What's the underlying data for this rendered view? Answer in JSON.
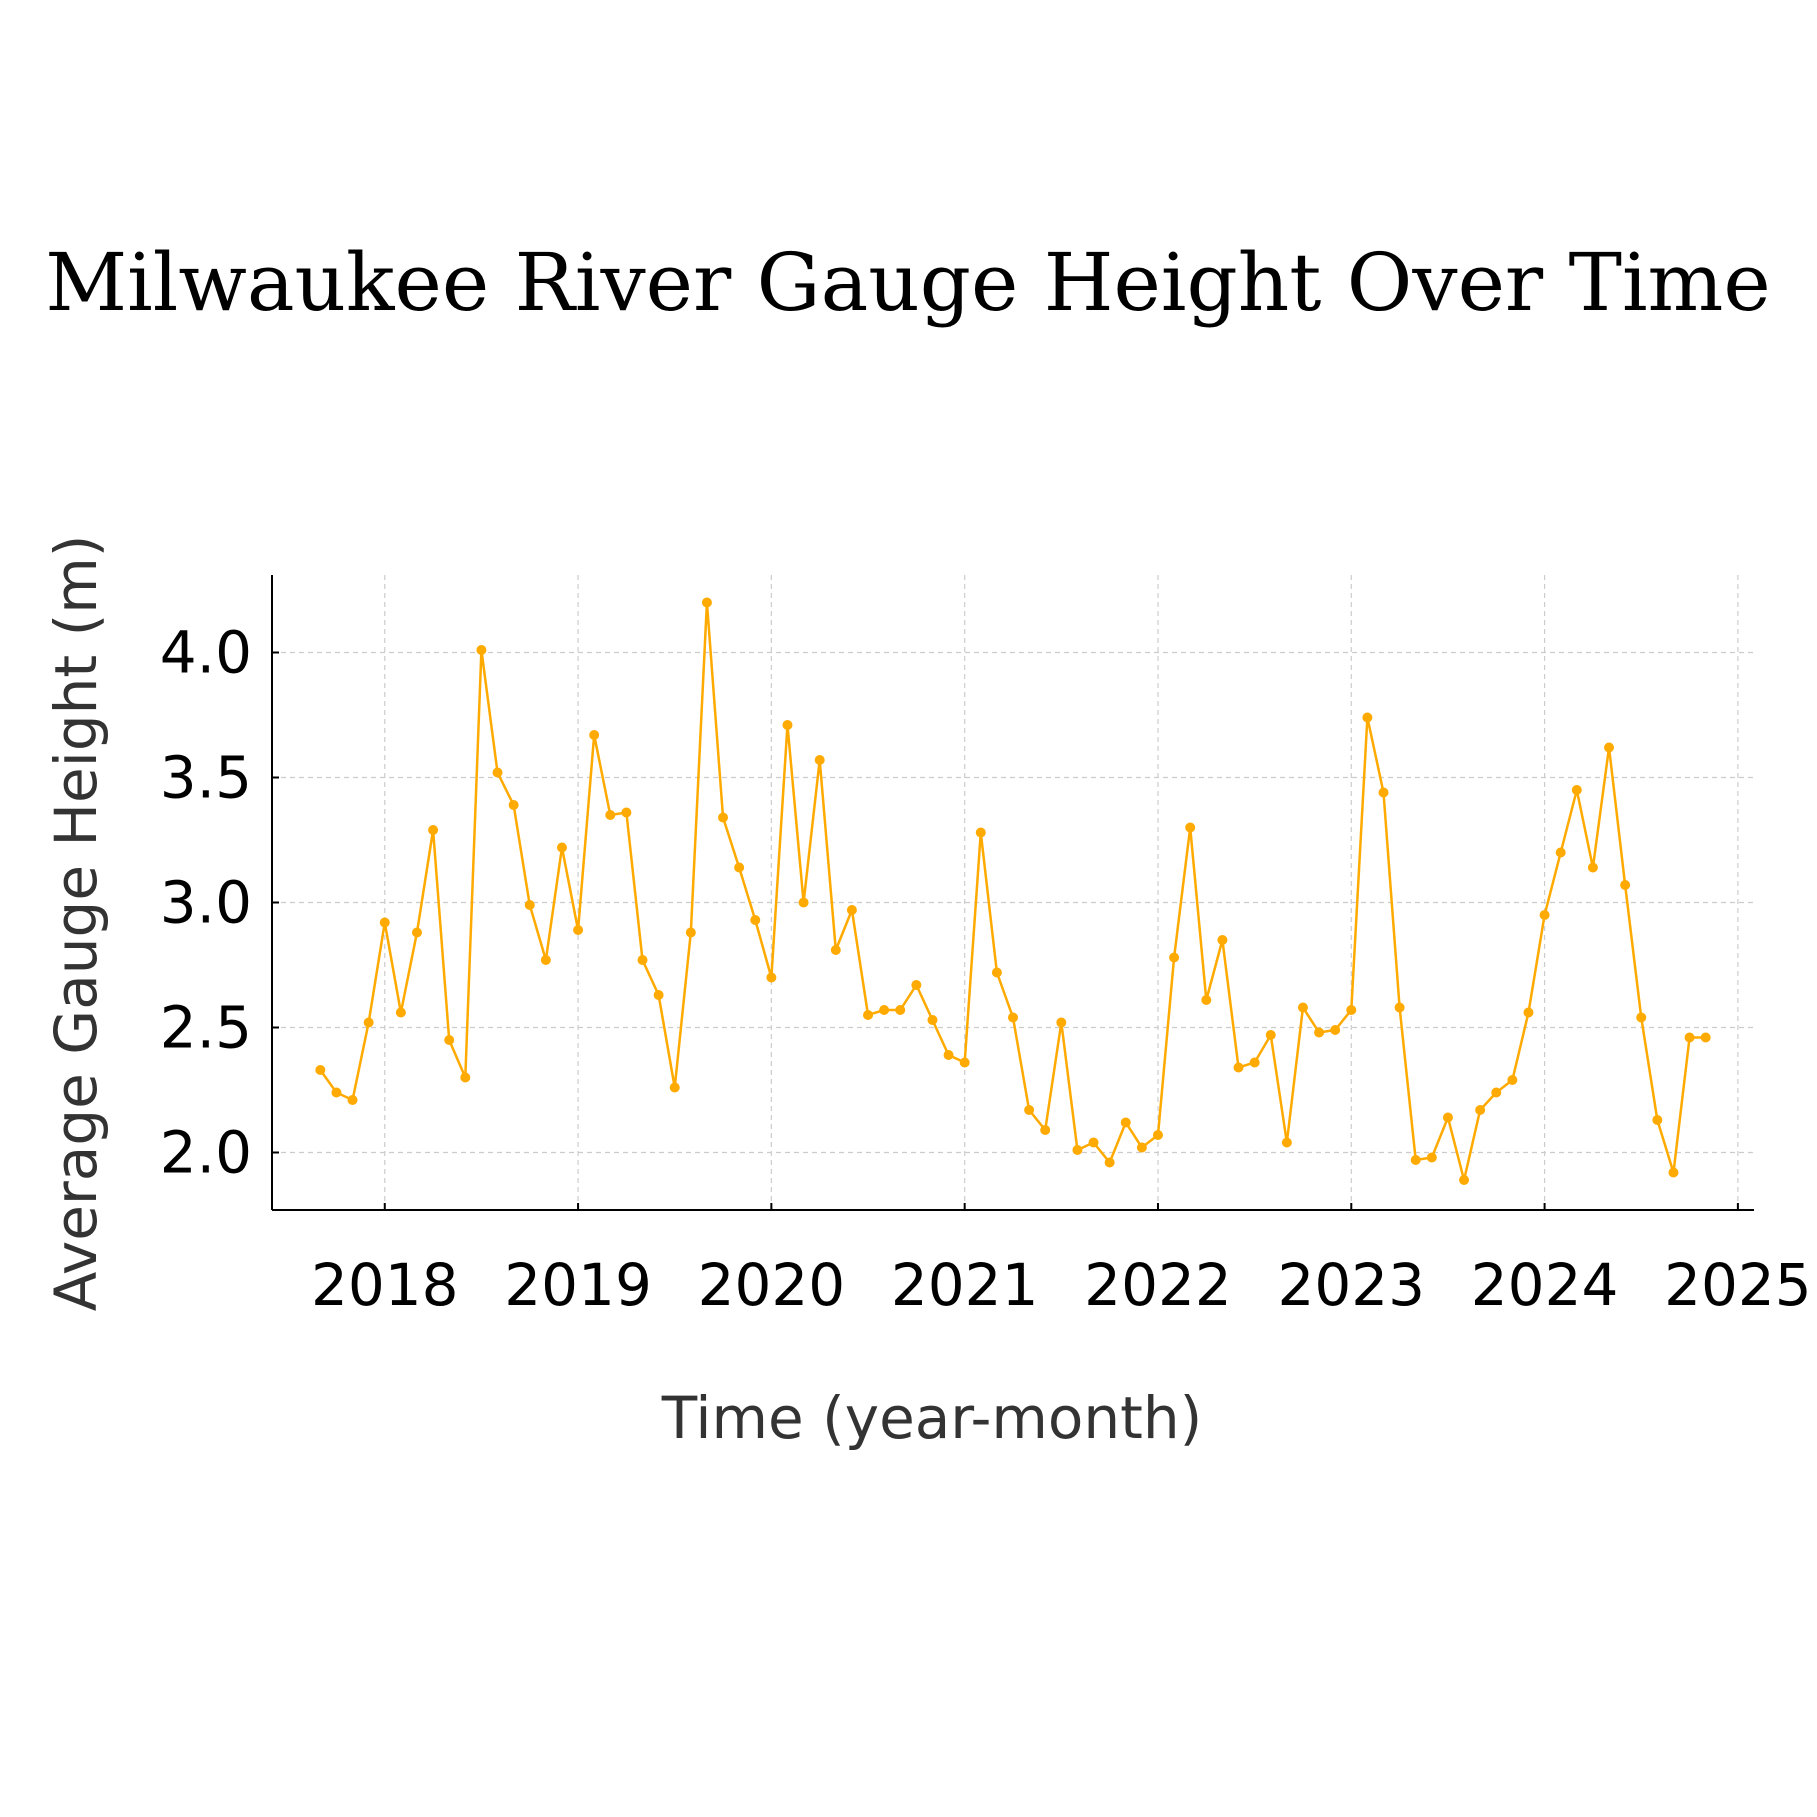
{
  "chart_data": {
    "type": "line",
    "title": "Milwaukee River Gauge Height Over Time",
    "xlabel": "Time (year-month)",
    "ylabel": "Average Gauge Height (m)",
    "x_tick_labels": [
      "2018",
      "2019",
      "2020",
      "2021",
      "2022",
      "2023",
      "2024",
      "2025"
    ],
    "y_tick_labels": [
      "2.0",
      "2.5",
      "3.0",
      "3.5",
      "4.0"
    ],
    "y_ticks": [
      2.0,
      2.5,
      3.0,
      3.5,
      4.0
    ],
    "xlim": [
      "2017-06",
      "2025-02"
    ],
    "ylim": [
      1.77,
      4.31
    ],
    "grid": true,
    "colors": {
      "line": "#ffaa00",
      "grid": "#cccccc",
      "axis": "#000000"
    },
    "series": [
      {
        "x": [
          "2017-09",
          "2017-10",
          "2017-11",
          "2017-12",
          "2018-01",
          "2018-02",
          "2018-03",
          "2018-04",
          "2018-05",
          "2018-06",
          "2018-07",
          "2018-08",
          "2018-09",
          "2018-10",
          "2018-11",
          "2018-12",
          "2019-01",
          "2019-02",
          "2019-03",
          "2019-04",
          "2019-05",
          "2019-06",
          "2019-07",
          "2019-08",
          "2019-09",
          "2019-10",
          "2019-11",
          "2019-12",
          "2020-01",
          "2020-02",
          "2020-03",
          "2020-04",
          "2020-05",
          "2020-06",
          "2020-07",
          "2020-08",
          "2020-09",
          "2020-10",
          "2020-11",
          "2020-12",
          "2021-01",
          "2021-02",
          "2021-03",
          "2021-04",
          "2021-05",
          "2021-06",
          "2021-07",
          "2021-08",
          "2021-09",
          "2021-10",
          "2021-11",
          "2021-12",
          "2022-01",
          "2022-02",
          "2022-03",
          "2022-04",
          "2022-05",
          "2022-06",
          "2022-07",
          "2022-08",
          "2022-09",
          "2022-10",
          "2022-11",
          "2022-12",
          "2023-01",
          "2023-02",
          "2023-03",
          "2023-04",
          "2023-05",
          "2023-06",
          "2023-07",
          "2023-08",
          "2023-09",
          "2023-10",
          "2023-11",
          "2023-12",
          "2024-01",
          "2024-02",
          "2024-03",
          "2024-04",
          "2024-05",
          "2024-06",
          "2024-07",
          "2024-08",
          "2024-09",
          "2024-10",
          "2024-11"
        ],
        "values": [
          2.33,
          2.24,
          2.21,
          2.52,
          2.92,
          2.56,
          2.88,
          3.29,
          2.45,
          2.3,
          4.01,
          3.52,
          3.39,
          2.99,
          2.77,
          3.22,
          2.89,
          3.67,
          3.35,
          3.36,
          2.77,
          2.63,
          2.26,
          2.88,
          4.2,
          3.34,
          3.14,
          2.93,
          2.7,
          3.71,
          3.0,
          3.57,
          2.81,
          2.97,
          2.55,
          2.57,
          2.57,
          2.67,
          2.53,
          2.39,
          2.36,
          3.28,
          2.72,
          2.54,
          2.17,
          2.09,
          2.52,
          2.01,
          2.04,
          1.96,
          2.12,
          2.02,
          2.07,
          2.78,
          3.3,
          2.61,
          2.85,
          2.34,
          2.36,
          2.47,
          2.04,
          2.58,
          2.48,
          2.49,
          2.57,
          3.74,
          3.44,
          2.58,
          1.97,
          1.98,
          2.14,
          1.89,
          2.17,
          2.24,
          2.29,
          2.56,
          2.95,
          3.2,
          3.45,
          3.14,
          3.62,
          3.07,
          2.54,
          2.13,
          1.92,
          2.46,
          2.46
        ]
      }
    ]
  }
}
